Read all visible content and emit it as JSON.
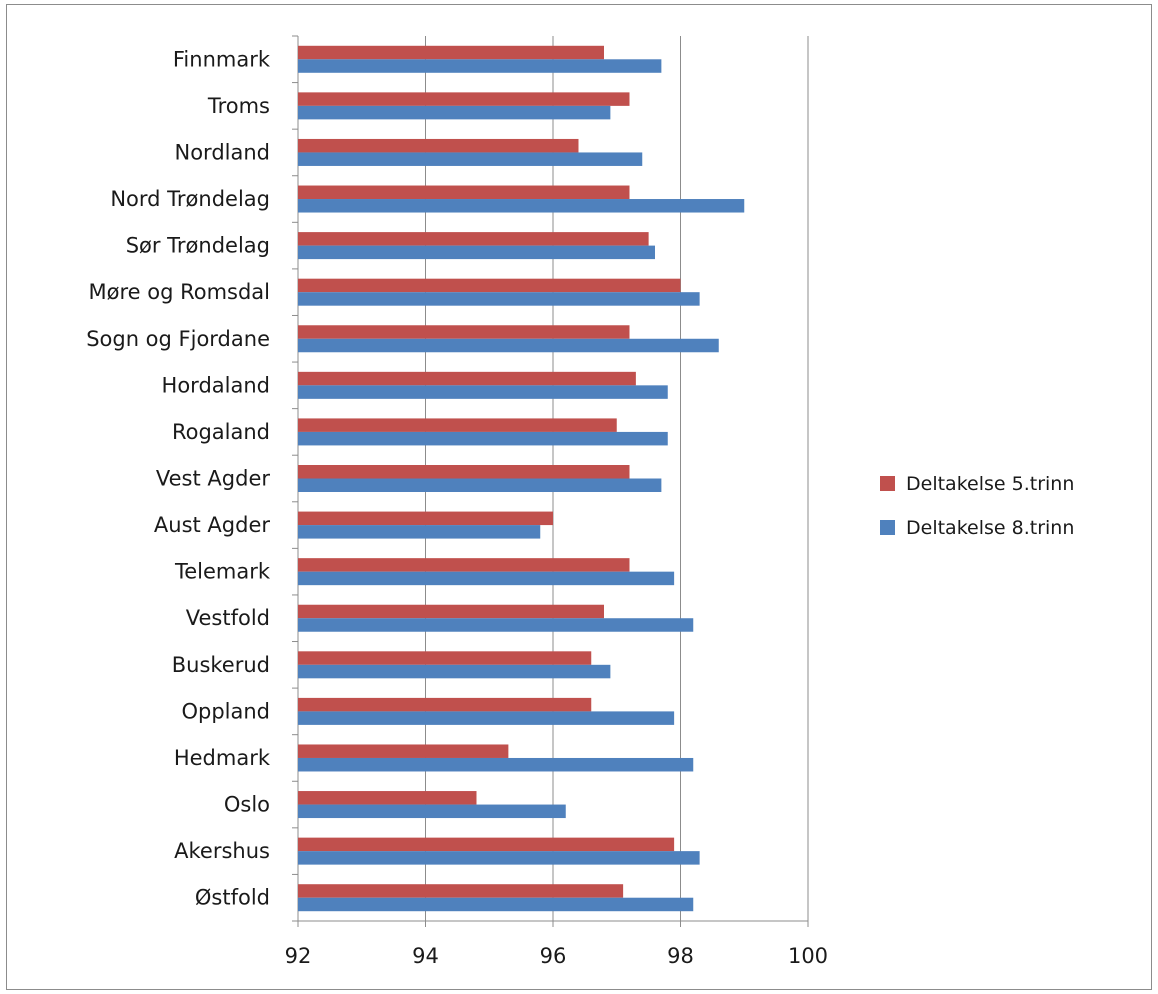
{
  "chart_data": {
    "type": "bar",
    "orientation": "horizontal",
    "categories": [
      "Finnmark",
      "Troms",
      "Nordland",
      "Nord Trøndelag",
      "Sør Trøndelag",
      "Møre og Romsdal",
      "Sogn og Fjordane",
      "Hordaland",
      "Rogaland",
      "Vest Agder",
      "Aust Agder",
      "Telemark",
      "Vestfold",
      "Buskerud",
      "Oppland",
      "Hedmark",
      "Oslo",
      "Akershus",
      "Østfold"
    ],
    "series": [
      {
        "name": "Deltakelse 5.trinn",
        "color": "#c0504d",
        "values": [
          96.8,
          97.2,
          96.4,
          97.2,
          97.5,
          98.0,
          97.2,
          97.3,
          97.0,
          97.2,
          96.0,
          97.2,
          96.8,
          96.6,
          96.6,
          95.3,
          94.8,
          97.9,
          97.1
        ]
      },
      {
        "name": "Deltakelse 8.trinn",
        "color": "#4f81bd",
        "values": [
          97.7,
          96.9,
          97.4,
          99.0,
          97.6,
          98.3,
          98.6,
          97.8,
          97.8,
          97.7,
          95.8,
          97.9,
          98.2,
          96.9,
          97.9,
          98.2,
          96.2,
          98.3,
          98.2
        ]
      }
    ],
    "xlim": [
      92,
      100
    ],
    "xticks": [
      "92",
      "94",
      "96",
      "98",
      "100"
    ],
    "grid": true,
    "legend_position": "right",
    "title": "",
    "xlabel": "",
    "ylabel": ""
  }
}
